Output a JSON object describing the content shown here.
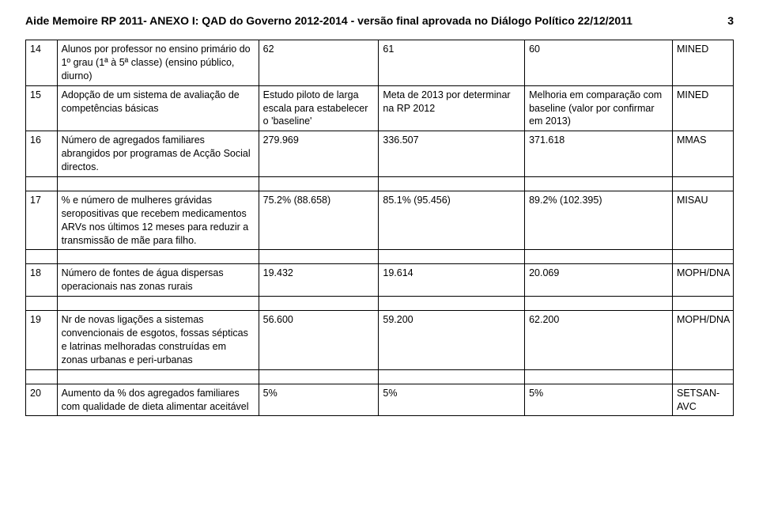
{
  "header": {
    "title": "Aide Memoire RP 2011- ANEXO I: QAD do Governo 2012-2014 - versão final aprovada no Diálogo Político 22/12/2011",
    "pageNumber": "3"
  },
  "rows": [
    {
      "idx": "14",
      "desc": "Alunos por professor no ensino primário do 1º grau (1ª à 5ª classe) (ensino público, diurno)",
      "c1": "62",
      "c2": "61",
      "c3": "60",
      "c4": "MINED"
    },
    {
      "idx": "15",
      "desc": "Adopção de um sistema de avaliação de competências básicas",
      "c1": "Estudo piloto de larga escala para estabelecer o 'baseline'",
      "c2": "Meta de 2013 por determinar na RP 2012",
      "c3": "Melhoria em comparação com baseline (valor por confirmar em 2013)",
      "c4": "MINED"
    },
    {
      "idx": "16",
      "desc": "Número de agregados familiares abrangidos por programas de Acção Social directos.",
      "c1": "279.969",
      "c2": "336.507",
      "c3": "371.618",
      "c4": "MMAS"
    },
    {
      "idx": "17",
      "desc": "% e número de mulheres grávidas seropositivas que recebem medicamentos ARVs nos últimos 12 meses para reduzir a transmissão de mãe para filho.",
      "c1": "75.2% (88.658)",
      "c2": "85.1% (95.456)",
      "c3": "89.2% (102.395)",
      "c4": "MISAU"
    },
    {
      "idx": "18",
      "desc": "Número de fontes de água dispersas operacionais nas zonas rurais",
      "c1": "19.432",
      "c2": "19.614",
      "c3": "20.069",
      "c4": "MOPH/DNA"
    },
    {
      "idx": "19",
      "desc": "Nr de novas ligações a sistemas convencionais de esgotos, fossas sépticas e latrinas melhoradas construídas em zonas urbanas e peri-urbanas",
      "c1": "56.600",
      "c2": "59.200",
      "c3": "62.200",
      "c4": "MOPH/DNA"
    },
    {
      "idx": "20",
      "desc": "Aumento da % dos agregados familiares com qualidade de dieta alimentar aceitável",
      "c1": "5%",
      "c2": "5%",
      "c3": "5%",
      "c4": "SETSAN-AVC"
    }
  ],
  "spacerAfter": [
    2,
    3,
    4,
    5
  ]
}
